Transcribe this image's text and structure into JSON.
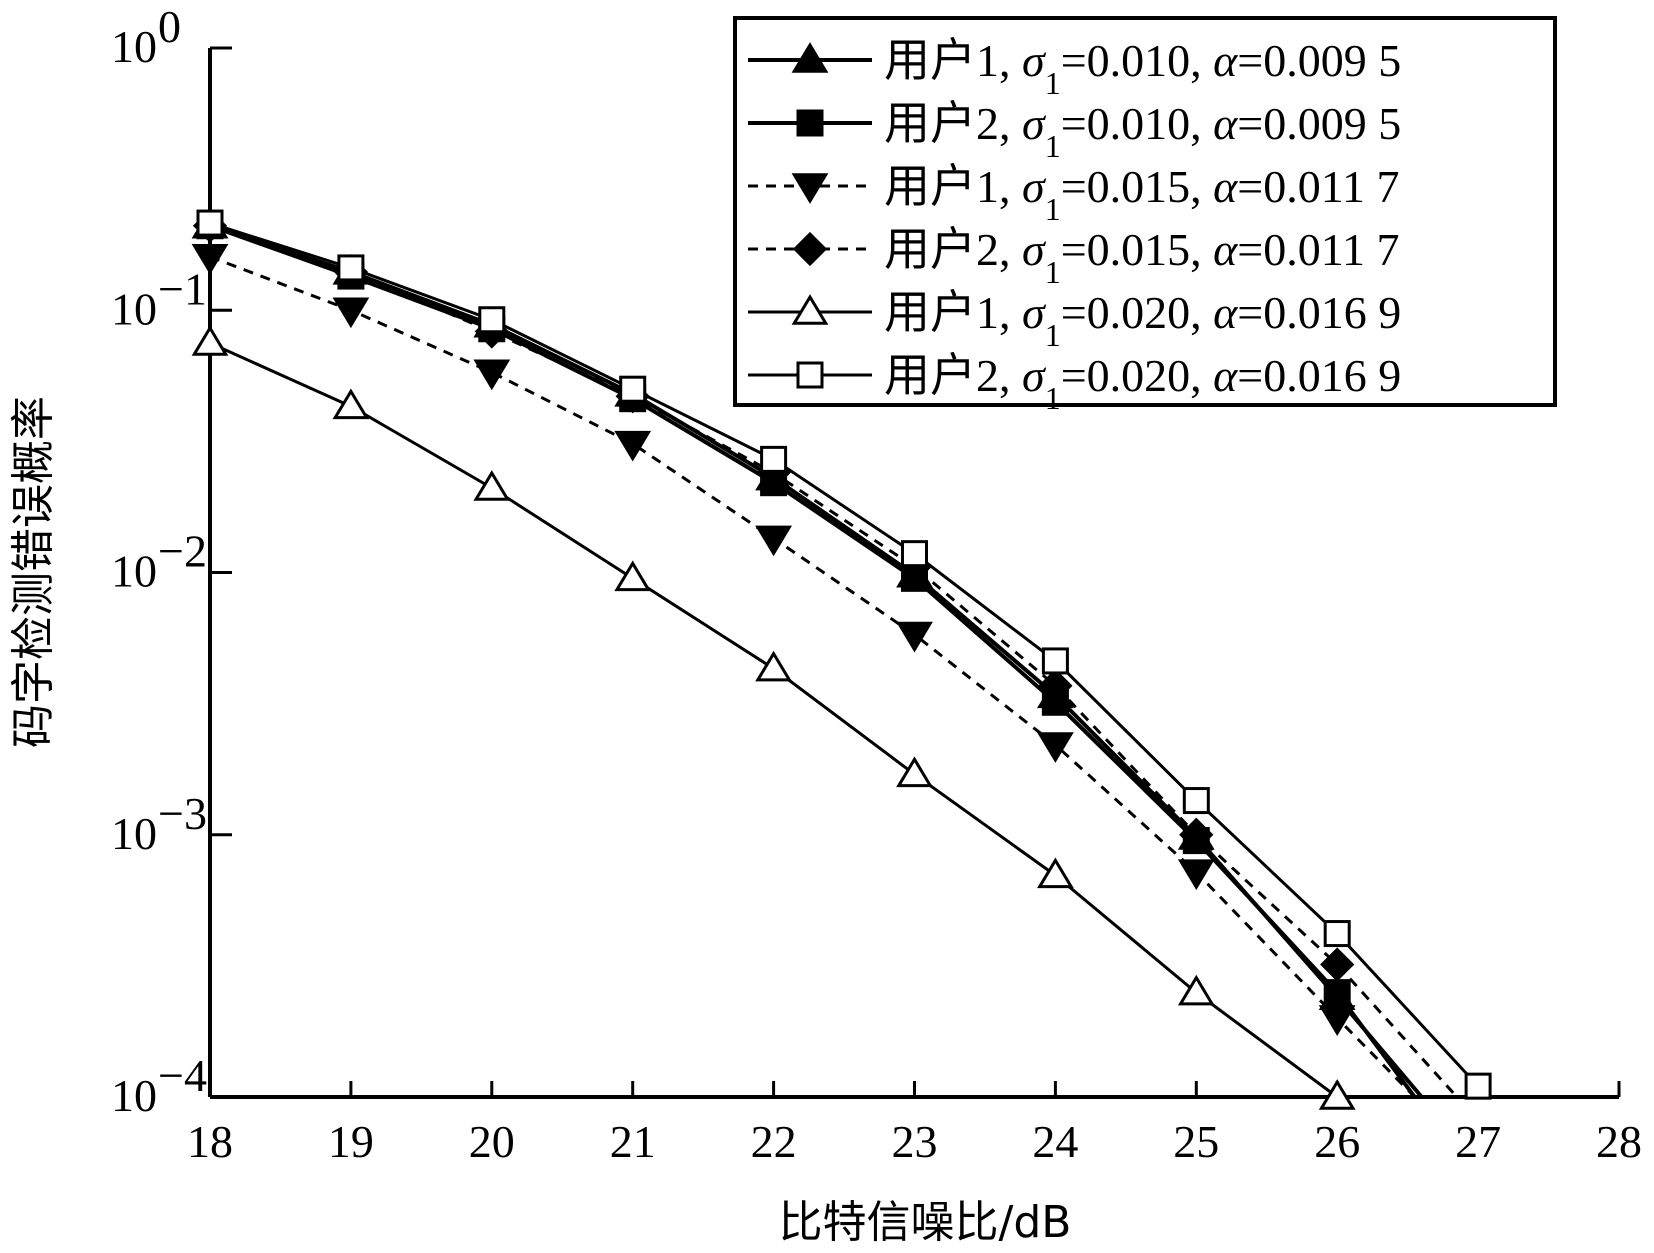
{
  "chart_data": {
    "type": "line",
    "title": "",
    "xlabel": "比特信噪比/dB",
    "ylabel": "码字检测错误概率",
    "x_ticks": [
      "18",
      "19",
      "20",
      "21",
      "22",
      "23",
      "24",
      "25",
      "26",
      "27",
      "28"
    ],
    "y_ticks": [
      {
        "base": "10",
        "exp": "0"
      },
      {
        "base": "10",
        "exp": "−1"
      },
      {
        "base": "10",
        "exp": "−2"
      },
      {
        "base": "10",
        "exp": "−3"
      },
      {
        "base": "10",
        "exp": "−4"
      }
    ],
    "xlim": [
      18,
      28
    ],
    "ylim": [
      0.0001,
      1
    ],
    "yscale": "log",
    "grid": false,
    "legend_position": "top-right",
    "series": [
      {
        "name": "用户1, σ1=0.010, α=0.009 5",
        "legend": {
          "prefix": "用户1, ",
          "sym": "σ",
          "sub": "1",
          "mid": "=0.010, ",
          "sym2": "α",
          "tail": "=0.009 5"
        },
        "marker": "triangle-up-filled",
        "dash": "solid",
        "width": 4,
        "x": [
          18,
          19,
          20,
          21,
          22,
          23,
          24,
          25,
          26,
          26.6
        ],
        "y": [
          0.21,
          0.14,
          0.088,
          0.048,
          0.023,
          0.0098,
          0.0034,
          0.00098,
          0.00024,
          0.0001
        ]
      },
      {
        "name": "用户2, σ1=0.010, α=0.009 5",
        "legend": {
          "prefix": "用户2, ",
          "sym": "σ",
          "sub": "1",
          "mid": "=0.010, ",
          "sym2": "α",
          "tail": "=0.009 5"
        },
        "marker": "square-filled",
        "dash": "solid",
        "width": 4,
        "x": [
          18,
          19,
          20,
          21,
          22,
          23,
          24,
          25,
          26,
          26.55
        ],
        "y": [
          0.21,
          0.135,
          0.085,
          0.046,
          0.022,
          0.0095,
          0.0032,
          0.00095,
          0.00025,
          0.0001
        ]
      },
      {
        "name": "用户1, σ1=0.015, α=0.011 7",
        "legend": {
          "prefix": "用户1, ",
          "sym": "σ",
          "sub": "1",
          "mid": "=0.015, ",
          "sym2": "α",
          "tail": "=0.011 7"
        },
        "marker": "triangle-down-filled",
        "dash": "dashed",
        "width": 3,
        "x": [
          18,
          19,
          20,
          21,
          22,
          23,
          24,
          25,
          26,
          26.55
        ],
        "y": [
          0.16,
          0.1,
          0.058,
          0.031,
          0.0135,
          0.0058,
          0.0022,
          0.00072,
          0.0002,
          0.0001
        ]
      },
      {
        "name": "用户2, σ1=0.015, α=0.011 7",
        "legend": {
          "prefix": "用户2, ",
          "sym": "σ",
          "sub": "1",
          "mid": "=0.015, ",
          "sym2": "α",
          "tail": "=0.011 7"
        },
        "marker": "diamond-filled",
        "dash": "dashed",
        "width": 3,
        "x": [
          18,
          19,
          20,
          21,
          22,
          23,
          24,
          25,
          26,
          26.85
        ],
        "y": [
          0.21,
          0.14,
          0.083,
          0.047,
          0.024,
          0.0105,
          0.0037,
          0.001,
          0.00032,
          0.0001
        ]
      },
      {
        "name": "用户1, σ1=0.020, α=0.016 9",
        "legend": {
          "prefix": "用户1, ",
          "sym": "σ",
          "sub": "1",
          "mid": "=0.020, ",
          "sym2": "α",
          "tail": "=0.016 9"
        },
        "marker": "triangle-up-open",
        "dash": "solid",
        "width": 3,
        "x": [
          18,
          19,
          20,
          21,
          22,
          23,
          24,
          25,
          26
        ],
        "y": [
          0.075,
          0.043,
          0.021,
          0.0095,
          0.0043,
          0.0017,
          0.0007,
          0.00025,
          0.0001
        ]
      },
      {
        "name": "用户2, σ1=0.020, α=0.016 9",
        "legend": {
          "prefix": "用户2, ",
          "sym": "σ",
          "sub": "1",
          "mid": "=0.020, ",
          "sym2": "α",
          "tail": "=0.016 9"
        },
        "marker": "square-open",
        "dash": "solid",
        "width": 3,
        "x": [
          18,
          19,
          20,
          21,
          22,
          23,
          24,
          25,
          26,
          27
        ],
        "y": [
          0.215,
          0.145,
          0.092,
          0.05,
          0.027,
          0.0118,
          0.0046,
          0.00135,
          0.00042,
          0.00011
        ]
      }
    ]
  }
}
